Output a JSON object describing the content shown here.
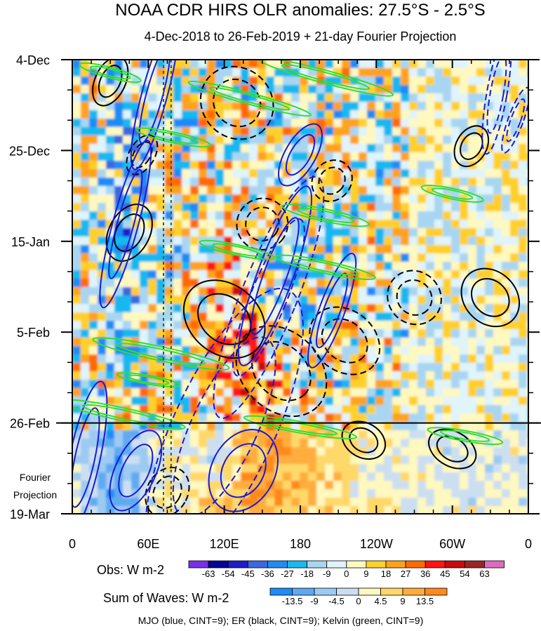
{
  "chart_data": {
    "type": "heatmap",
    "title": "NOAA CDR HIRS OLR anomalies: 27.5°S - 2.5°S",
    "subtitle": "4-Dec-2018 to 26-Feb-2019 + 21-day Fourier Projection",
    "x_tick_labels": [
      "0",
      "60E",
      "120E",
      "180",
      "120W",
      "60W",
      "0"
    ],
    "x_tick_lon": [
      0,
      60,
      120,
      180,
      240,
      300,
      360
    ],
    "xlim": [
      0,
      360
    ],
    "y_tick_labels": [
      "4-Dec",
      "25-Dec",
      "15-Jan",
      "5-Feb",
      "26-Feb",
      "19-Mar"
    ],
    "y_tick_day": [
      0,
      21,
      42,
      63,
      84,
      105
    ],
    "ylim_days": [
      0,
      105
    ],
    "observation_end_day": 84,
    "projection_label_line1": "Fourier",
    "projection_label_line2": "Projection",
    "reference_lines_lon": [
      72,
      78
    ],
    "obs_colorbar": {
      "label": "Obs: W m-2",
      "levels": [
        "-63",
        "-54",
        "-45",
        "-36",
        "-27",
        "-18",
        "-9",
        "0",
        "9",
        "18",
        "27",
        "36",
        "45",
        "54",
        "63"
      ],
      "colors": [
        "#7b2fe8",
        "#05059a",
        "#1d1dc8",
        "#3b68e0",
        "#1f8cf5",
        "#19b8f0",
        "#a8d6f2",
        "#dff4fb",
        "#fff8bf",
        "#ffd02a",
        "#ffa21a",
        "#ff6a00",
        "#ff1414",
        "#c80b0b",
        "#9b2424",
        "#e06ac0"
      ]
    },
    "wave_colorbar": {
      "label": "Sum of Waves: W m-2",
      "levels": [
        "-13.5",
        "-9",
        "-4.5",
        "0",
        "4.5",
        "9",
        "13.5"
      ],
      "colors": [
        "#1f8cf5",
        "#5eaaf2",
        "#9ccaf2",
        "#ccdff0",
        "#fff8bf",
        "#ffd86a",
        "#ffae3c",
        "#ff8a1e"
      ]
    },
    "footer": "MJO (blue, CINT=9); ER (black, CINT=9); Kelvin (green, CINT=9)",
    "series": [
      {
        "name": "MJO",
        "color": "#1a1ad4"
      },
      {
        "name": "ER",
        "color": "#000000"
      },
      {
        "name": "Kelvin",
        "color": "#33dd33"
      }
    ]
  }
}
